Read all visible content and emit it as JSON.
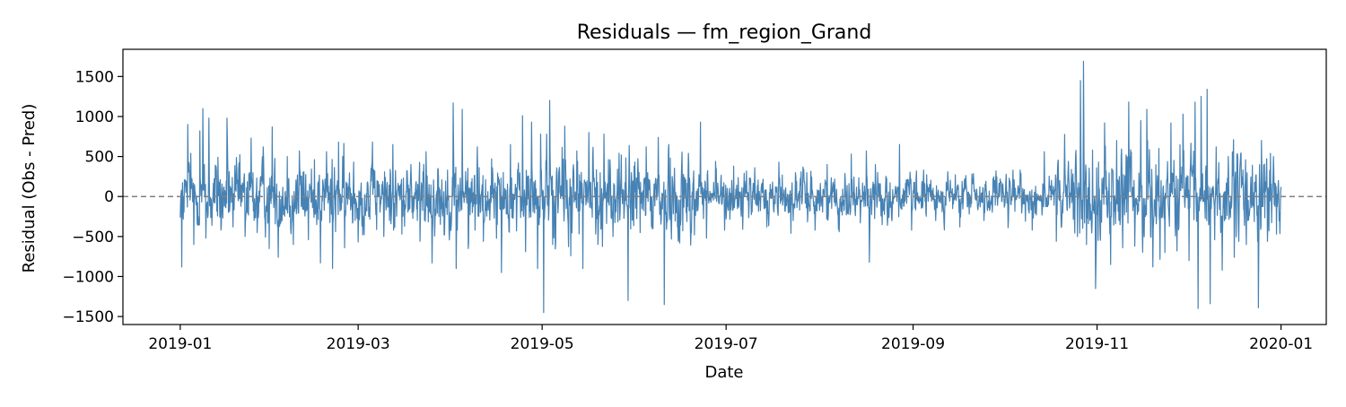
{
  "chart_data": {
    "type": "line",
    "title": "Residuals — fm_region_Grand",
    "xlabel": "Date",
    "ylabel": "Residual (Obs - Pred)",
    "x_range": [
      "2018-12-13",
      "2020-01-16"
    ],
    "ylim": [
      -1600,
      1840
    ],
    "x_ticks": [
      "2019-01",
      "2019-03",
      "2019-05",
      "2019-07",
      "2019-09",
      "2019-11",
      "2020-01"
    ],
    "y_ticks": [
      -1500,
      -1000,
      -500,
      0,
      500,
      1000,
      1500
    ],
    "grid": false,
    "legend": "none",
    "zero_line": {
      "y": 0,
      "style": "dashed",
      "color": "#808080"
    },
    "series": [
      {
        "color": "#4682b4",
        "resolution": "hourly",
        "start": "2019-01-01",
        "end": "2019-12-31",
        "points": [
          [
            "2019-01-01",
            -880
          ],
          [
            "2019-01-02",
            130
          ],
          [
            "2019-01-03",
            900
          ],
          [
            "2019-01-04",
            540
          ],
          [
            "2019-01-05",
            -600
          ],
          [
            "2019-01-07",
            820
          ],
          [
            "2019-01-08",
            1100
          ],
          [
            "2019-01-09",
            -520
          ],
          [
            "2019-01-10",
            980
          ],
          [
            "2019-01-11",
            -360
          ],
          [
            "2019-01-13",
            490
          ],
          [
            "2019-01-14",
            -420
          ],
          [
            "2019-01-16",
            980
          ],
          [
            "2019-01-18",
            -380
          ],
          [
            "2019-01-20",
            420
          ],
          [
            "2019-01-22",
            -500
          ],
          [
            "2019-01-24",
            730
          ],
          [
            "2019-01-26",
            -450
          ],
          [
            "2019-01-28",
            620
          ],
          [
            "2019-01-30",
            -650
          ],
          [
            "2019-01-31",
            870
          ],
          [
            "2019-02-02",
            -760
          ],
          [
            "2019-02-05",
            500
          ],
          [
            "2019-02-07",
            -600
          ],
          [
            "2019-02-09",
            570
          ],
          [
            "2019-02-12",
            -540
          ],
          [
            "2019-02-14",
            460
          ],
          [
            "2019-02-16",
            -830
          ],
          [
            "2019-02-18",
            560
          ],
          [
            "2019-02-20",
            -900
          ],
          [
            "2019-02-22",
            680
          ],
          [
            "2019-02-24",
            -640
          ],
          [
            "2019-02-27",
            430
          ],
          [
            "2019-03-02",
            -480
          ],
          [
            "2019-03-06",
            320
          ],
          [
            "2019-03-09",
            -500
          ],
          [
            "2019-03-12",
            650
          ],
          [
            "2019-03-15",
            -470
          ],
          [
            "2019-03-18",
            400
          ],
          [
            "2019-03-21",
            -560
          ],
          [
            "2019-03-23",
            560
          ],
          [
            "2019-03-25",
            -830
          ],
          [
            "2019-03-27",
            350
          ],
          [
            "2019-03-29",
            -480
          ],
          [
            "2019-04-01",
            1170
          ],
          [
            "2019-04-02",
            -900
          ],
          [
            "2019-04-04",
            1090
          ],
          [
            "2019-04-06",
            -650
          ],
          [
            "2019-04-09",
            620
          ],
          [
            "2019-04-11",
            -560
          ],
          [
            "2019-04-14",
            360
          ],
          [
            "2019-04-17",
            -950
          ],
          [
            "2019-04-20",
            650
          ],
          [
            "2019-04-22",
            -430
          ],
          [
            "2019-04-24",
            1010
          ],
          [
            "2019-04-25",
            -690
          ],
          [
            "2019-04-27",
            930
          ],
          [
            "2019-04-29",
            -900
          ],
          [
            "2019-04-30",
            780
          ],
          [
            "2019-05-01",
            -1450
          ],
          [
            "2019-05-02",
            780
          ],
          [
            "2019-05-03",
            1200
          ],
          [
            "2019-05-04",
            -600
          ],
          [
            "2019-05-06",
            300
          ],
          [
            "2019-05-08",
            880
          ],
          [
            "2019-05-10",
            -740
          ],
          [
            "2019-05-12",
            570
          ],
          [
            "2019-05-14",
            -900
          ],
          [
            "2019-05-16",
            800
          ],
          [
            "2019-05-19",
            -600
          ],
          [
            "2019-05-21",
            780
          ],
          [
            "2019-05-24",
            -500
          ],
          [
            "2019-05-26",
            540
          ],
          [
            "2019-05-29",
            -1300
          ],
          [
            "2019-05-31",
            380
          ],
          [
            "2019-06-02",
            -450
          ],
          [
            "2019-06-04",
            620
          ],
          [
            "2019-06-06",
            -400
          ],
          [
            "2019-06-08",
            740
          ],
          [
            "2019-06-10",
            -1350
          ],
          [
            "2019-06-12",
            480
          ],
          [
            "2019-06-15",
            -530
          ],
          [
            "2019-06-18",
            540
          ],
          [
            "2019-06-20",
            -480
          ],
          [
            "2019-06-22",
            930
          ],
          [
            "2019-06-24",
            -520
          ],
          [
            "2019-06-27",
            440
          ],
          [
            "2019-06-30",
            -420
          ],
          [
            "2019-07-03",
            380
          ],
          [
            "2019-07-06",
            -410
          ],
          [
            "2019-07-10",
            360
          ],
          [
            "2019-07-14",
            -380
          ],
          [
            "2019-07-18",
            430
          ],
          [
            "2019-07-22",
            -460
          ],
          [
            "2019-07-26",
            370
          ],
          [
            "2019-07-30",
            -420
          ],
          [
            "2019-08-03",
            400
          ],
          [
            "2019-08-07",
            -440
          ],
          [
            "2019-08-11",
            530
          ],
          [
            "2019-08-14",
            -330
          ],
          [
            "2019-08-16",
            570
          ],
          [
            "2019-08-17",
            -820
          ],
          [
            "2019-08-19",
            400
          ],
          [
            "2019-08-23",
            -360
          ],
          [
            "2019-08-27",
            650
          ],
          [
            "2019-08-31",
            -420
          ],
          [
            "2019-09-04",
            330
          ],
          [
            "2019-09-08",
            -300
          ],
          [
            "2019-09-12",
            310
          ],
          [
            "2019-09-16",
            -380
          ],
          [
            "2019-09-20",
            280
          ],
          [
            "2019-09-24",
            -300
          ],
          [
            "2019-09-28",
            320
          ],
          [
            "2019-10-02",
            -390
          ],
          [
            "2019-10-06",
            330
          ],
          [
            "2019-10-10",
            -420
          ],
          [
            "2019-10-14",
            560
          ],
          [
            "2019-10-18",
            -560
          ],
          [
            "2019-10-22",
            440
          ],
          [
            "2019-10-25",
            -500
          ],
          [
            "2019-10-26",
            1450
          ],
          [
            "2019-10-27",
            1690
          ],
          [
            "2019-10-28",
            -600
          ],
          [
            "2019-10-30",
            580
          ],
          [
            "2019-10-31",
            -1150
          ],
          [
            "2019-11-01",
            430
          ],
          [
            "2019-11-03",
            920
          ],
          [
            "2019-11-05",
            -850
          ],
          [
            "2019-11-07",
            700
          ],
          [
            "2019-11-09",
            -640
          ],
          [
            "2019-11-11",
            1180
          ],
          [
            "2019-11-13",
            -620
          ],
          [
            "2019-11-15",
            950
          ],
          [
            "2019-11-17",
            1090
          ],
          [
            "2019-11-19",
            -880
          ],
          [
            "2019-11-21",
            600
          ],
          [
            "2019-11-23",
            -700
          ],
          [
            "2019-11-25",
            920
          ],
          [
            "2019-11-27",
            -680
          ],
          [
            "2019-11-29",
            1030
          ],
          [
            "2019-12-01",
            -800
          ],
          [
            "2019-12-03",
            1180
          ],
          [
            "2019-12-04",
            -1400
          ],
          [
            "2019-12-05",
            1250
          ],
          [
            "2019-12-07",
            1340
          ],
          [
            "2019-12-08",
            -1340
          ],
          [
            "2019-12-10",
            620
          ],
          [
            "2019-12-12",
            -920
          ],
          [
            "2019-12-14",
            500
          ],
          [
            "2019-12-16",
            -760
          ],
          [
            "2019-12-18",
            450
          ],
          [
            "2019-12-20",
            -600
          ],
          [
            "2019-12-22",
            390
          ],
          [
            "2019-12-24",
            -1390
          ],
          [
            "2019-12-25",
            700
          ],
          [
            "2019-12-27",
            -560
          ],
          [
            "2019-12-29",
            500
          ],
          [
            "2019-12-30",
            -470
          ],
          [
            "2019-12-31",
            -200
          ]
        ]
      }
    ]
  }
}
